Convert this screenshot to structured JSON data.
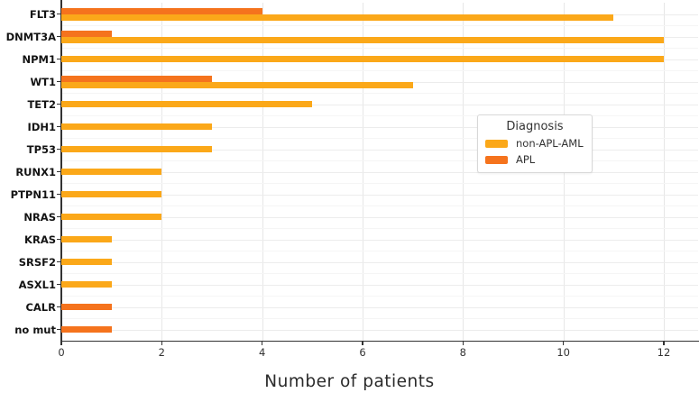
{
  "chart_data": {
    "type": "bar",
    "orientation": "horizontal",
    "title": "",
    "xlabel": "Number of patients",
    "ylabel": "",
    "categories": [
      "FLT3",
      "DNMT3A",
      "NPM1",
      "WT1",
      "TET2",
      "IDH1",
      "TP53",
      "RUNX1",
      "PTPN11",
      "NRAS",
      "KRAS",
      "SRSF2",
      "ASXL1",
      "CALR",
      "no mut"
    ],
    "series": [
      {
        "name": "non-APL-AML",
        "color": "#FBA819",
        "values": [
          11,
          12,
          12,
          7,
          5,
          3,
          3,
          2,
          2,
          2,
          1,
          1,
          1,
          0,
          0
        ]
      },
      {
        "name": "APL",
        "color": "#F5731D",
        "values": [
          4,
          1,
          0,
          3,
          0,
          0,
          0,
          0,
          0,
          0,
          0,
          0,
          0,
          1,
          1
        ]
      }
    ],
    "xlim": [
      0,
      12.7
    ],
    "xticks": [
      0,
      2,
      4,
      6,
      8,
      10,
      12
    ],
    "grid": "major-vertical-every-2, light horizontal per category",
    "legend": {
      "title": "Diagnosis",
      "position": "right-middle"
    },
    "colors": {
      "axis": "#333333",
      "grid_major": "#ececec",
      "grid_minor": "#f5f5f5",
      "background": "#ffffff"
    }
  }
}
